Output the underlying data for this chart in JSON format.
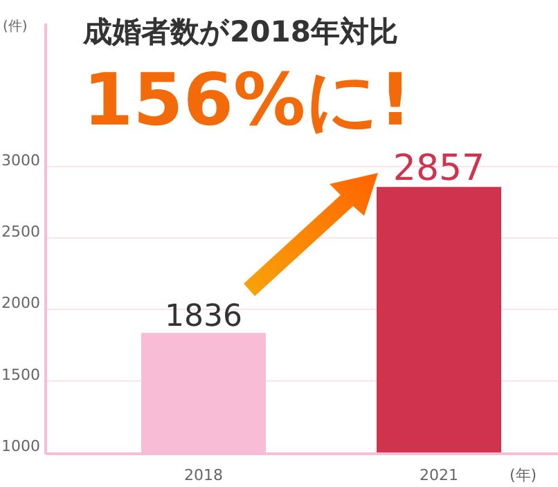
{
  "chart_data": {
    "type": "bar",
    "title": "成婚者数が2018年対比",
    "subtitle": "156%に!",
    "ylabel": "(件)",
    "xlabel": "(年)",
    "categories": [
      "2018",
      "2021"
    ],
    "values": [
      1836,
      2857
    ],
    "colors": [
      "#f9bcd7",
      "#d0334e"
    ],
    "ylim": [
      1000,
      4000
    ],
    "yticks": [
      1000,
      1500,
      2000,
      2500,
      3000
    ],
    "grid": "y",
    "data_labels": true
  }
}
